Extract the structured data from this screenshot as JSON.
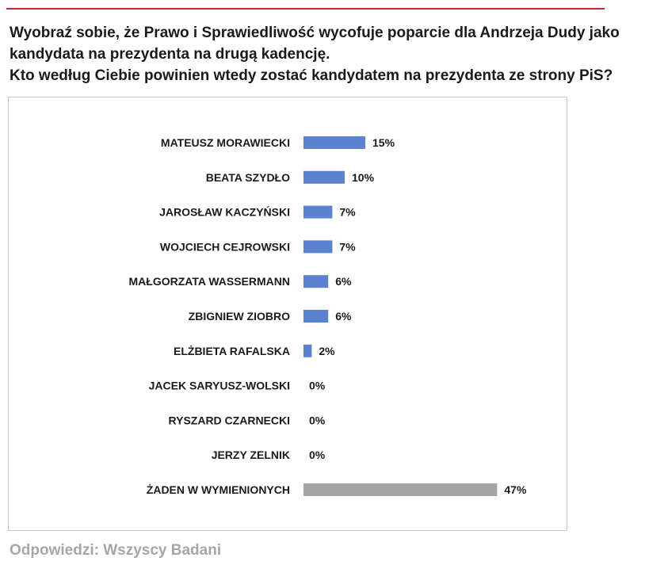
{
  "question": {
    "line1": "Wyobraź sobie, że Prawo i Sprawiedliwość wycofuje poparcie dla Andrzeja Dudy jako",
    "line2": "kandydata na prezydenta na drugą kadencję.",
    "line3": "Kto według Ciebie powinien wtedy zostać kandydatem na prezydenta ze strony PiS?"
  },
  "footer": "Odpowiedzi: Wszyscy Badani",
  "colors": {
    "bar": "#5b82cf",
    "bar_none": "#a6a6a6",
    "rule": "#c0282f",
    "text": "#1a1a1a"
  },
  "chart_data": {
    "type": "bar",
    "orientation": "horizontal",
    "categories": [
      "MATEUSZ MORAWIECKI",
      "BEATA SZYDŁO",
      "JAROSŁAW KACZYŃSKI",
      "WOJCIECH CEJROWSKI",
      "MAŁGORZATA WASSERMANN",
      "ZBIGNIEW ZIOBRO",
      "ELŻBIETA RAFALSKA",
      "JACEK SARYUSZ-WOLSKI",
      "RYSZARD CZARNECKI",
      "JERZY ZELNIK",
      "ŻADEN W WYMIENIONYCH"
    ],
    "values": [
      15,
      10,
      7,
      7,
      6,
      6,
      2,
      0,
      0,
      0,
      47
    ],
    "labels": [
      "15%",
      "10%",
      "7%",
      "7%",
      "6%",
      "6%",
      "2%",
      "0%",
      "0%",
      "0%",
      "47%"
    ],
    "xlim": [
      0,
      50
    ],
    "grid": false,
    "legend": "none"
  }
}
